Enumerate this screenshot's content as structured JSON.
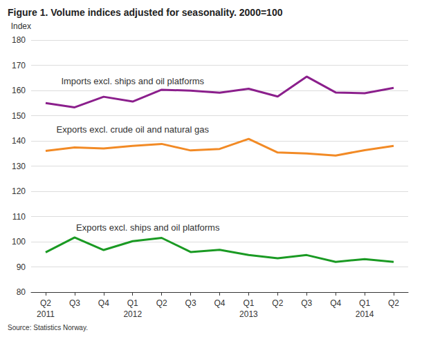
{
  "chart_data": {
    "type": "line",
    "title": "Figure 1. Volume indices adjusted for seasonality. 2000=100",
    "ylabel": "Index",
    "source": "Source: Statistics Norway.",
    "categories": [
      "Q2\n2011",
      "Q3",
      "Q4",
      "Q1\n2012",
      "Q2",
      "Q3",
      "Q4",
      "Q1\n2013",
      "Q2",
      "Q3",
      "Q4",
      "Q1\n2014",
      "Q2"
    ],
    "series": [
      {
        "name": "Imports excl. ships and oil platforms",
        "color": "#8b1f8c",
        "values": [
          155,
          153.3,
          157.5,
          155.6,
          160.3,
          159.9,
          159.1,
          160.7,
          157.6,
          165.5,
          159.2,
          158.9,
          161
        ]
      },
      {
        "name": "Exports excl. crude oil and natural gas",
        "color": "#f28a25",
        "values": [
          136,
          137.4,
          137,
          138,
          138.8,
          136.2,
          136.8,
          140.8,
          135.4,
          135,
          134.2,
          136.3,
          138
        ]
      },
      {
        "name": "Exports excl. ships and oil platforms",
        "color": "#1a9a23",
        "values": [
          95.8,
          101.7,
          96.7,
          100.2,
          101.5,
          95.9,
          96.8,
          94.7,
          93.4,
          94.7,
          92,
          93.1,
          92
        ]
      }
    ],
    "ylim": [
      80,
      180
    ],
    "yticks": [
      80,
      90,
      100,
      110,
      120,
      130,
      140,
      150,
      160,
      170,
      180
    ],
    "grid": true
  }
}
